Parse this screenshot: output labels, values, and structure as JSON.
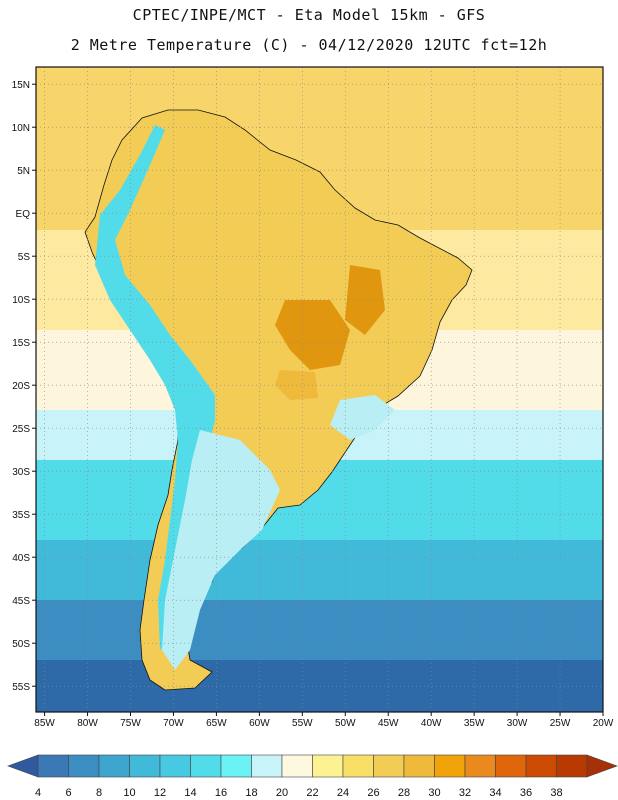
{
  "header": {
    "line1": "CPTEC/INPE/MCT -  Eta Model 15km - GFS",
    "line2": "2 Metre Temperature (C) - 04/12/2020 12UTC fct=12h"
  },
  "axes": {
    "lat_labels": [
      "15N",
      "10N",
      "5N",
      "EQ",
      "5S",
      "10S",
      "15S",
      "20S",
      "25S",
      "30S",
      "35S",
      "40S",
      "45S",
      "50S",
      "55S"
    ],
    "lat_values": [
      15,
      10,
      5,
      0,
      -5,
      -10,
      -15,
      -20,
      -25,
      -30,
      -35,
      -40,
      -45,
      -50,
      -55
    ],
    "lon_labels": [
      "85W",
      "80W",
      "75W",
      "70W",
      "65W",
      "60W",
      "55W",
      "50W",
      "45W",
      "40W",
      "35W",
      "30W",
      "25W",
      "20W"
    ],
    "lon_values": [
      -85,
      -80,
      -75,
      -70,
      -65,
      -60,
      -55,
      -50,
      -45,
      -40,
      -35,
      -30,
      -25,
      -20
    ],
    "lat_range": [
      -58,
      17
    ],
    "lon_range": [
      -86,
      -20
    ]
  },
  "colorbar": {
    "ticks": [
      "4",
      "6",
      "8",
      "10",
      "12",
      "14",
      "16",
      "18",
      "20",
      "22",
      "24",
      "26",
      "28",
      "30",
      "32",
      "34",
      "36",
      "38"
    ],
    "colors": [
      "#3a79b6",
      "#3b8dc2",
      "#3ea5cf",
      "#41b9d9",
      "#46c9e1",
      "#52dbe9",
      "#6af2f5",
      "#c8f4f9",
      "#fdf8e0",
      "#fdf291",
      "#f8e066",
      "#f3cc55",
      "#efb93c",
      "#f0a40a",
      "#ea8a1e",
      "#e0660b",
      "#cc4a02",
      "#b83a02"
    ],
    "low_color": "#2f5aa0",
    "high_color": "#a63008"
  },
  "fields": {
    "ocean_bands": [
      {
        "color": "#f8d56a"
      },
      {
        "color": "#fde9a0"
      },
      {
        "color": "#fdf5dc"
      },
      {
        "color": "#c8f4f9"
      },
      {
        "color": "#52dbe9"
      },
      {
        "color": "#41b9d9"
      },
      {
        "color": "#3b8dc2"
      },
      {
        "color": "#2e6aa8"
      }
    ],
    "land_colors": {
      "north": "#f3cc55",
      "interior": "#efb93c",
      "hot": "#e0960f",
      "andes": "#52dbe9",
      "south": "#b8eef4",
      "patagonia": "#7ee2ef"
    }
  }
}
